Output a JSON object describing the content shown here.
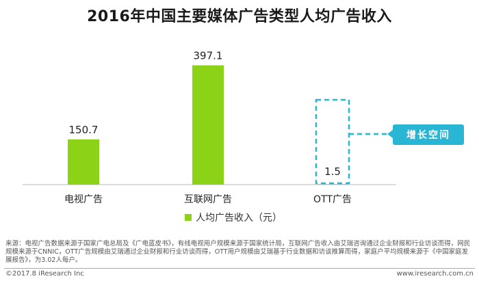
{
  "title": "2016年中国主要媒体广告类型人均广告收入",
  "chart_data": {
    "type": "bar",
    "categories": [
      "电视广告",
      "互联网广告",
      "OTT广告"
    ],
    "series": [
      {
        "name": "人均广告收入（元）",
        "values": [
          150.7,
          397.1,
          1.5
        ]
      }
    ],
    "data_labels": [
      "150.7",
      "397.1",
      "1.5"
    ],
    "ylim": [
      0,
      450
    ],
    "grid": false,
    "legend_position": "bottom",
    "bar_color": "#8cd317",
    "highlight_color": "#29b6d4",
    "annotation": "增长空间"
  },
  "legend": {
    "label": "人均广告收入（元）"
  },
  "source": "来源：电视广告数据来源于国家广电总局及《广电蓝皮书》，有线电视用户规模来源于国家统计局，互联网广告收入由艾瑞咨询通过企业财报和行业访谈而得，网民规模来源于CNNIC，OTT广告规模由艾瑞通过企业财报和行业访谈而得，OTT用户规模由艾瑞基于行业数据和访谈推算而得，家庭户平均规模来源于《中国家庭发展报告》，为3.02人每户。",
  "footer": {
    "copyright": "©2017.8 iResearch Inc",
    "website": "www.iresearch.com.cn"
  }
}
